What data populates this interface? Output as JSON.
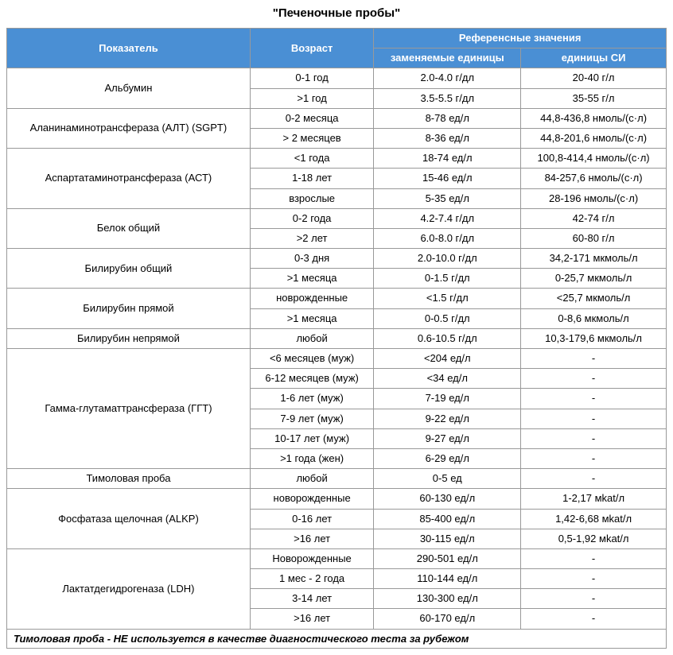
{
  "title": "\"Печеночные пробы\"",
  "styling": {
    "header_bg": "#4a8fd4",
    "header_color": "#ffffff",
    "border_color": "#999999",
    "title_fontsize": 15,
    "cell_fontsize": 13
  },
  "headers": {
    "indicator": "Показатель",
    "age": "Возраст",
    "reference": "Референсные значения",
    "replaceable_units": "заменяемые единицы",
    "si_units": "единицы СИ"
  },
  "groups": [
    {
      "name": "Альбумин",
      "rows": [
        {
          "age": "0-1 год",
          "ru": "2.0-4.0 г/дл",
          "si": "20-40 г/л"
        },
        {
          "age": ">1 год",
          "ru": "3.5-5.5 г/дл",
          "si": "35-55 г/л"
        }
      ]
    },
    {
      "name": "Аланинаминотрансфераза (АЛТ) (SGPT)",
      "rows": [
        {
          "age": "0-2 месяца",
          "ru": "8-78 ед/л",
          "si": "44,8-436,8 нмоль/(с·л)"
        },
        {
          "age": "> 2 месяцев",
          "ru": "8-36 ед/л",
          "si": "44,8-201,6 нмоль/(с·л)"
        }
      ]
    },
    {
      "name": "Аспартатаминотрансфераза (АСТ)",
      "rows": [
        {
          "age": "<1 года",
          "ru": "18-74 ед/л",
          "si": "100,8-414,4 нмоль/(с·л)"
        },
        {
          "age": "1-18 лет",
          "ru": "15-46 ед/л",
          "si": "84-257,6 нмоль/(с·л)"
        },
        {
          "age": "взрослые",
          "ru": "5-35 ед/л",
          "si": "28-196 нмоль/(с·л)"
        }
      ]
    },
    {
      "name": "Белок общий",
      "rows": [
        {
          "age": "0-2 года",
          "ru": "4.2-7.4 г/дл",
          "si": "42-74 г/л"
        },
        {
          "age": ">2 лет",
          "ru": "6.0-8.0 г/дл",
          "si": "60-80 г/л"
        }
      ]
    },
    {
      "name": "Билирубин общий",
      "rows": [
        {
          "age": "0-3 дня",
          "ru": "2.0-10.0 г/дл",
          "si": "34,2-171 мкмоль/л"
        },
        {
          "age": ">1 месяца",
          "ru": "0-1.5 г/дл",
          "si": "0-25,7 мкмоль/л"
        }
      ]
    },
    {
      "name": "Билирубин прямой",
      "rows": [
        {
          "age": "новрожденные",
          "ru": "<1.5 г/дл",
          "si": "<25,7 мкмоль/л"
        },
        {
          "age": ">1 месяца",
          "ru": "0-0.5 г/дл",
          "si": "0-8,6 мкмоль/л"
        }
      ]
    },
    {
      "name": "Билирубин непрямой",
      "rows": [
        {
          "age": "любой",
          "ru": "0.6-10.5 г/дл",
          "si": "10,3-179,6 мкмоль/л"
        }
      ]
    },
    {
      "name": "Гамма-глутаматтрансфераза (ГГТ)",
      "rows": [
        {
          "age": "<6 месяцев (муж)",
          "ru": "<204 ед/л",
          "si": "-"
        },
        {
          "age": "6-12 месяцев (муж)",
          "ru": "<34 ед/л",
          "si": "-"
        },
        {
          "age": "1-6 лет (муж)",
          "ru": "7-19 ед/л",
          "si": "-"
        },
        {
          "age": "7-9 лет (муж)",
          "ru": "9-22 ед/л",
          "si": "-"
        },
        {
          "age": "10-17 лет (муж)",
          "ru": "9-27 ед/л",
          "si": "-"
        },
        {
          "age": ">1 года (жен)",
          "ru": "6-29 ед/л",
          "si": "-"
        }
      ]
    },
    {
      "name": "Тимоловая проба",
      "rows": [
        {
          "age": "любой",
          "ru": "0-5 ед",
          "si": "-"
        }
      ]
    },
    {
      "name": "Фосфатаза щелочная (ALKP)",
      "rows": [
        {
          "age": "новорожденные",
          "ru": "60-130 ед/л",
          "si": "1-2,17 мkat/л"
        },
        {
          "age": "0-16 лет",
          "ru": "85-400 ед/л",
          "si": "1,42-6,68 мkat/л"
        },
        {
          "age": ">16 лет",
          "ru": "30-115 ед/л",
          "si": "0,5-1,92 мkat/л"
        }
      ]
    },
    {
      "name": "Лактатдегидрогеназа (LDH)",
      "rows": [
        {
          "age": "Новорожденные",
          "ru": "290-501 ед/л",
          "si": "-"
        },
        {
          "age": "1 мес - 2 года",
          "ru": "110-144 ед/л",
          "si": "-"
        },
        {
          "age": "3-14 лет",
          "ru": "130-300 ед/л",
          "si": "-"
        },
        {
          "age": ">16 лет",
          "ru": "60-170 ед/л",
          "si": "-"
        }
      ]
    }
  ],
  "footnote": "Тимоловая проба - НЕ используется в качестве диагностического теста за рубежом"
}
